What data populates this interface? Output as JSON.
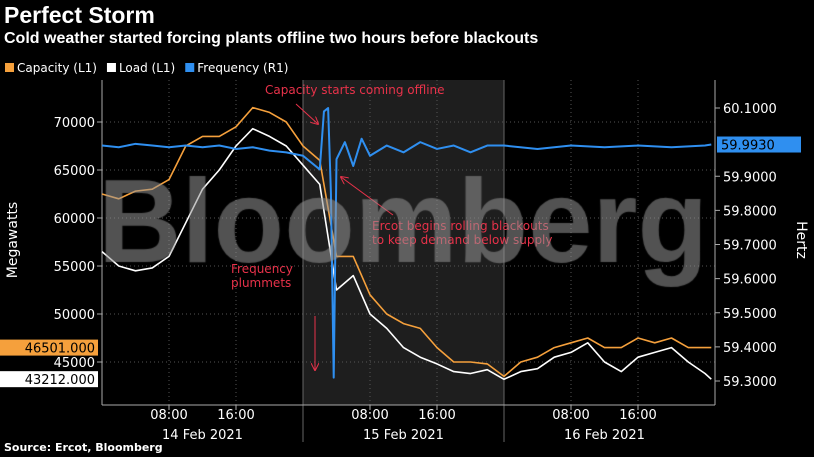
{
  "header": {
    "title": "Perfect Storm",
    "subtitle": "Cold weather started forcing plants offline two hours before blackouts"
  },
  "source": "Source: Ercot, Bloomberg",
  "watermark": "Bloomberg",
  "chart_data": {
    "type": "line",
    "x_range": [
      "2021-02-14 00:00",
      "2021-02-17 00:45"
    ],
    "ylabel_left": "Megawatts",
    "ylabel_right": "Hertz",
    "ylim_left": [
      42000,
      74000
    ],
    "ylim_right": [
      59.25,
      60.15
    ],
    "yticks_left": [
      "70000",
      "65000",
      "60000",
      "55000",
      "50000",
      "45000"
    ],
    "yticks_left_values": [
      70000,
      65000,
      60000,
      55000,
      50000,
      45000
    ],
    "yticks_right": [
      "60.1000",
      "59.9000",
      "59.8000",
      "59.7000",
      "59.6000",
      "59.5000",
      "59.4000",
      "59.3000"
    ],
    "yticks_right_values": [
      60.1,
      59.9,
      59.8,
      59.7,
      59.6,
      59.5,
      59.4,
      59.3
    ],
    "xticks": [
      {
        "t": "2021-02-14 08:00",
        "label": "08:00"
      },
      {
        "t": "2021-02-14 16:00",
        "label": "16:00"
      },
      {
        "t": "2021-02-15 08:00",
        "label": "08:00"
      },
      {
        "t": "2021-02-15 16:00",
        "label": "16:00"
      },
      {
        "t": "2021-02-16 08:00",
        "label": "08:00"
      },
      {
        "t": "2021-02-16 16:00",
        "label": "16:00"
      }
    ],
    "date_labels": [
      {
        "t": "2021-02-14 12:00",
        "label": "14 Feb 2021"
      },
      {
        "t": "2021-02-15 12:00",
        "label": "15 Feb 2021"
      },
      {
        "t": "2021-02-16 12:00",
        "label": "16 Feb 2021"
      }
    ],
    "shaded_range": [
      "2021-02-15 00:00",
      "2021-02-16 00:00"
    ],
    "grid": true,
    "legend_placement": "top-left",
    "legend": [
      "Capacity (L1)",
      "Load (L1)",
      "Frequency (R1)"
    ],
    "colors": {
      "capacity": "#f5a03c",
      "load": "#ffffff",
      "frequency": "#2f8ff0",
      "annotation": "#e8324a"
    },
    "x": [
      "2021-02-14 00:00",
      "2021-02-14 02:00",
      "2021-02-14 04:00",
      "2021-02-14 06:00",
      "2021-02-14 08:00",
      "2021-02-14 10:00",
      "2021-02-14 12:00",
      "2021-02-14 14:00",
      "2021-02-14 16:00",
      "2021-02-14 18:00",
      "2021-02-14 20:00",
      "2021-02-14 22:00",
      "2021-02-15 00:00",
      "2021-02-15 02:00",
      "2021-02-15 04:00",
      "2021-02-15 06:00",
      "2021-02-15 08:00",
      "2021-02-15 10:00",
      "2021-02-15 12:00",
      "2021-02-15 14:00",
      "2021-02-15 16:00",
      "2021-02-15 18:00",
      "2021-02-15 20:00",
      "2021-02-15 22:00",
      "2021-02-16 00:00",
      "2021-02-16 02:00",
      "2021-02-16 04:00",
      "2021-02-16 06:00",
      "2021-02-16 08:00",
      "2021-02-16 10:00",
      "2021-02-16 12:00",
      "2021-02-16 14:00",
      "2021-02-16 16:00",
      "2021-02-16 18:00",
      "2021-02-16 20:00",
      "2021-02-16 22:00",
      "2021-02-17 00:00",
      "2021-02-17 00:45"
    ],
    "series": [
      {
        "name": "Capacity (L1)",
        "axis": "left",
        "last_value": "46501.000",
        "values": [
          62500,
          62000,
          62800,
          63000,
          64000,
          67500,
          68500,
          68500,
          69500,
          71500,
          71000,
          70000,
          67500,
          66000,
          56000,
          56000,
          52000,
          50000,
          49000,
          48500,
          46500,
          45000,
          45000,
          44800,
          43500,
          45000,
          45500,
          46500,
          47000,
          47500,
          46500,
          46500,
          47500,
          47000,
          47500,
          46500,
          46500,
          46501
        ]
      },
      {
        "name": "Load (L1)",
        "axis": "left",
        "last_value": "43212.000",
        "values": [
          56500,
          55000,
          54500,
          54800,
          56000,
          59500,
          63000,
          65000,
          67500,
          69300,
          68500,
          67500,
          65500,
          63500,
          52500,
          54000,
          50000,
          48500,
          46500,
          45500,
          44800,
          44000,
          43800,
          44200,
          43200,
          44000,
          44300,
          45500,
          46000,
          47000,
          45000,
          44000,
          45500,
          46000,
          46500,
          45000,
          43800,
          43212
        ]
      },
      {
        "name": "Frequency (R1)",
        "axis": "right",
        "last_value": "59.9930",
        "points": [
          [
            "2021-02-14 00:00",
            59.99
          ],
          [
            "2021-02-14 02:00",
            59.985
          ],
          [
            "2021-02-14 04:00",
            59.995
          ],
          [
            "2021-02-14 06:00",
            59.99
          ],
          [
            "2021-02-14 08:00",
            59.985
          ],
          [
            "2021-02-14 10:00",
            59.99
          ],
          [
            "2021-02-14 12:00",
            59.985
          ],
          [
            "2021-02-14 14:00",
            59.99
          ],
          [
            "2021-02-14 16:00",
            59.98
          ],
          [
            "2021-02-14 18:00",
            59.985
          ],
          [
            "2021-02-14 20:00",
            59.975
          ],
          [
            "2021-02-14 22:00",
            59.97
          ],
          [
            "2021-02-15 00:00",
            59.96
          ],
          [
            "2021-02-15 01:00",
            59.94
          ],
          [
            "2021-02-15 02:00",
            59.92
          ],
          [
            "2021-02-15 02:30",
            60.09
          ],
          [
            "2021-02-15 03:00",
            60.1
          ],
          [
            "2021-02-15 03:20",
            59.85
          ],
          [
            "2021-02-15 03:40",
            59.31
          ],
          [
            "2021-02-15 04:00",
            59.95
          ],
          [
            "2021-02-15 05:00",
            60.0
          ],
          [
            "2021-02-15 06:00",
            59.93
          ],
          [
            "2021-02-15 07:00",
            60.01
          ],
          [
            "2021-02-15 08:00",
            59.96
          ],
          [
            "2021-02-15 10:00",
            59.99
          ],
          [
            "2021-02-15 12:00",
            59.97
          ],
          [
            "2021-02-15 14:00",
            60.0
          ],
          [
            "2021-02-15 16:00",
            59.98
          ],
          [
            "2021-02-15 18:00",
            59.99
          ],
          [
            "2021-02-15 20:00",
            59.97
          ],
          [
            "2021-02-15 22:00",
            59.99
          ],
          [
            "2021-02-16 00:00",
            59.99
          ],
          [
            "2021-02-16 04:00",
            59.98
          ],
          [
            "2021-02-16 08:00",
            59.99
          ],
          [
            "2021-02-16 12:00",
            59.985
          ],
          [
            "2021-02-16 16:00",
            59.99
          ],
          [
            "2021-02-16 20:00",
            59.985
          ],
          [
            "2021-02-17 00:00",
            59.99
          ],
          [
            "2021-02-17 00:45",
            59.993
          ]
        ]
      }
    ],
    "annotations": [
      {
        "id": "capacity",
        "lines": [
          "Capacity starts coming offline"
        ]
      },
      {
        "id": "ercot",
        "lines": [
          "Ercot begins rolling blackouts",
          "to keep demand below supply"
        ]
      },
      {
        "id": "frequency",
        "lines": [
          "Frequency",
          "plummets"
        ]
      }
    ]
  }
}
